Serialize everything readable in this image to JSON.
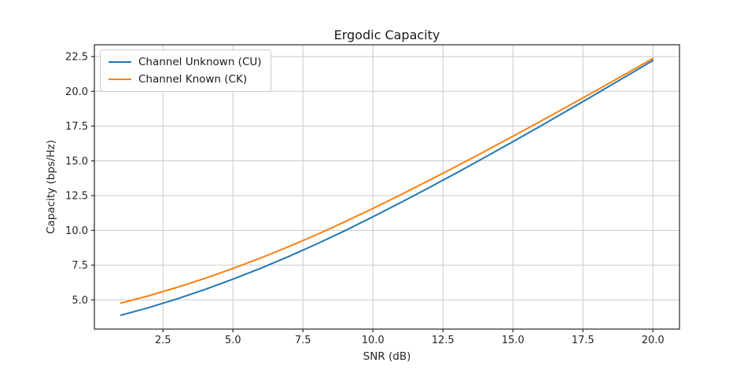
{
  "chart_data": {
    "type": "line",
    "title": "Ergodic Capacity",
    "xlabel": "SNR (dB)",
    "ylabel": "Capacity (bps/Hz)",
    "grid": true,
    "grid_color": "#c9c9c9",
    "spine_color": "#262626",
    "tick_color": "#262626",
    "xlim": [
      0.05,
      20.95
    ],
    "ylim": [
      2.9,
      23.35
    ],
    "xticks": [
      2.5,
      5.0,
      7.5,
      10.0,
      12.5,
      15.0,
      17.5,
      20.0
    ],
    "xtick_labels": [
      "2.5",
      "5.0",
      "7.5",
      "10.0",
      "12.5",
      "15.0",
      "17.5",
      "20.0"
    ],
    "yticks": [
      5.0,
      7.5,
      10.0,
      12.5,
      15.0,
      17.5,
      20.0,
      22.5
    ],
    "ytick_labels": [
      "5.0",
      "7.5",
      "10.0",
      "12.5",
      "15.0",
      "17.5",
      "20.0",
      "22.5"
    ],
    "legend_position": "upper left",
    "x": [
      1,
      2,
      3,
      4,
      5,
      6,
      7,
      8,
      9,
      10,
      11,
      12,
      13,
      14,
      15,
      16,
      17,
      18,
      19,
      20
    ],
    "series": [
      {
        "name": "Channel Unknown (CU)",
        "color": "#1f77b4",
        "values": [
          3.9,
          4.45,
          5.07,
          5.75,
          6.49,
          7.28,
          8.13,
          9.03,
          9.98,
          10.98,
          12.01,
          13.07,
          14.15,
          15.26,
          16.38,
          17.52,
          18.68,
          19.85,
          21.03,
          22.22
        ]
      },
      {
        "name": "Channel Known (CK)",
        "color": "#ff7f0e",
        "values": [
          4.77,
          5.3,
          5.9,
          6.55,
          7.26,
          8.02,
          8.84,
          9.7,
          10.62,
          11.58,
          12.57,
          13.59,
          14.63,
          15.69,
          16.77,
          17.86,
          18.97,
          20.09,
          21.22,
          22.37
        ]
      }
    ]
  }
}
